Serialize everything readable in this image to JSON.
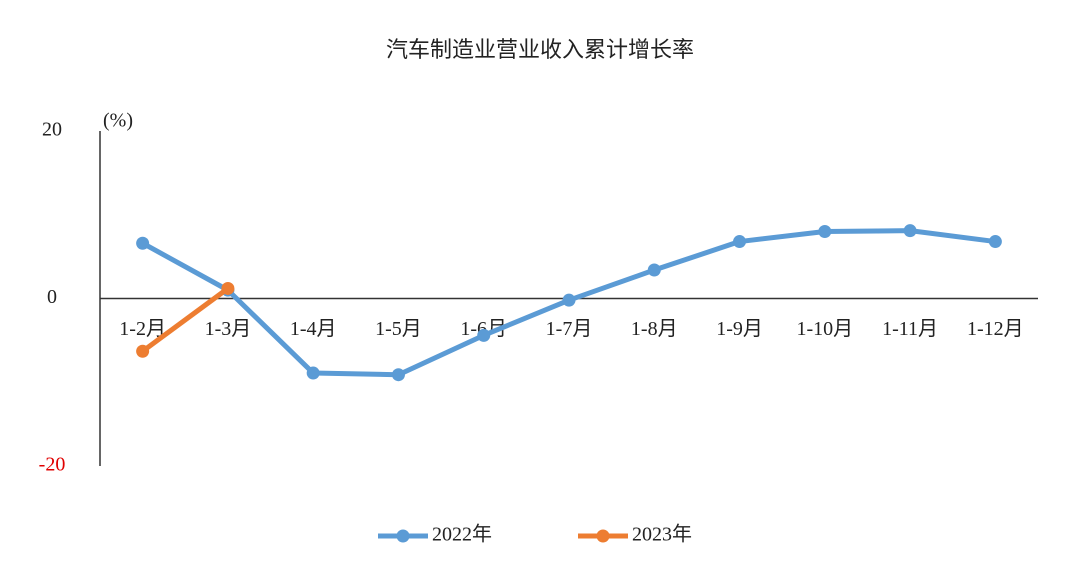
{
  "chart_data": {
    "type": "line",
    "title": "汽车制造业营业收入累计增长率",
    "y_unit": "(%)",
    "categories": [
      "1-2月",
      "1-3月",
      "1-4月",
      "1-5月",
      "1-6月",
      "1-7月",
      "1-8月",
      "1-9月",
      "1-10月",
      "1-11月",
      "1-12月"
    ],
    "series": [
      {
        "name": "2022年",
        "color": "#5b9bd5",
        "values": [
          6.6,
          1.0,
          -8.9,
          -9.1,
          -4.4,
          -0.2,
          3.4,
          6.8,
          8.0,
          8.1,
          6.8
        ]
      },
      {
        "name": "2023年",
        "color": "#ed7d31",
        "values": [
          -6.3,
          1.2,
          null,
          null,
          null,
          null,
          null,
          null,
          null,
          null,
          null
        ]
      }
    ],
    "ylim": [
      -20,
      20
    ],
    "yticks": [
      20,
      0,
      -20
    ],
    "ytick_colors": [
      "#222222",
      "#222222",
      "#e00000"
    ],
    "grid": false,
    "legend": "bottom"
  }
}
